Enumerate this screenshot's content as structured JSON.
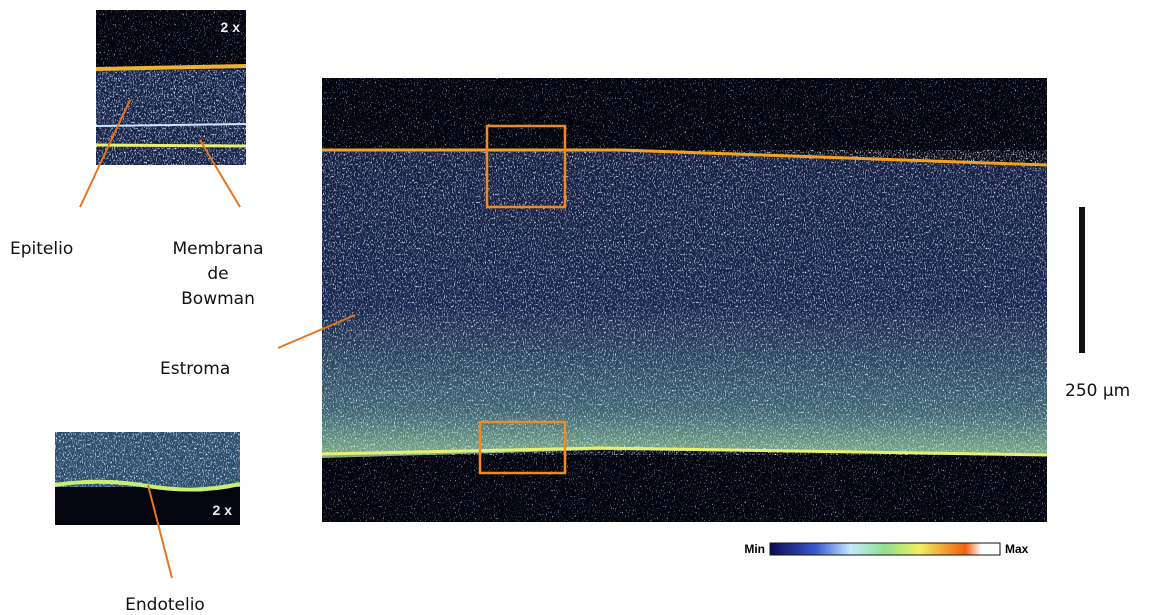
{
  "insets": [
    {
      "label": "2 x"
    },
    {
      "label": "2 x"
    }
  ],
  "labels": {
    "epitelio": "Epitelio",
    "bowman": [
      "Membrana",
      "de",
      "Bowman"
    ],
    "estroma": "Estroma",
    "endotelio": "Endotelio"
  },
  "scale_bar": {
    "label": "250 µm"
  },
  "color_scale": {
    "min": "Min",
    "max": "Max"
  }
}
